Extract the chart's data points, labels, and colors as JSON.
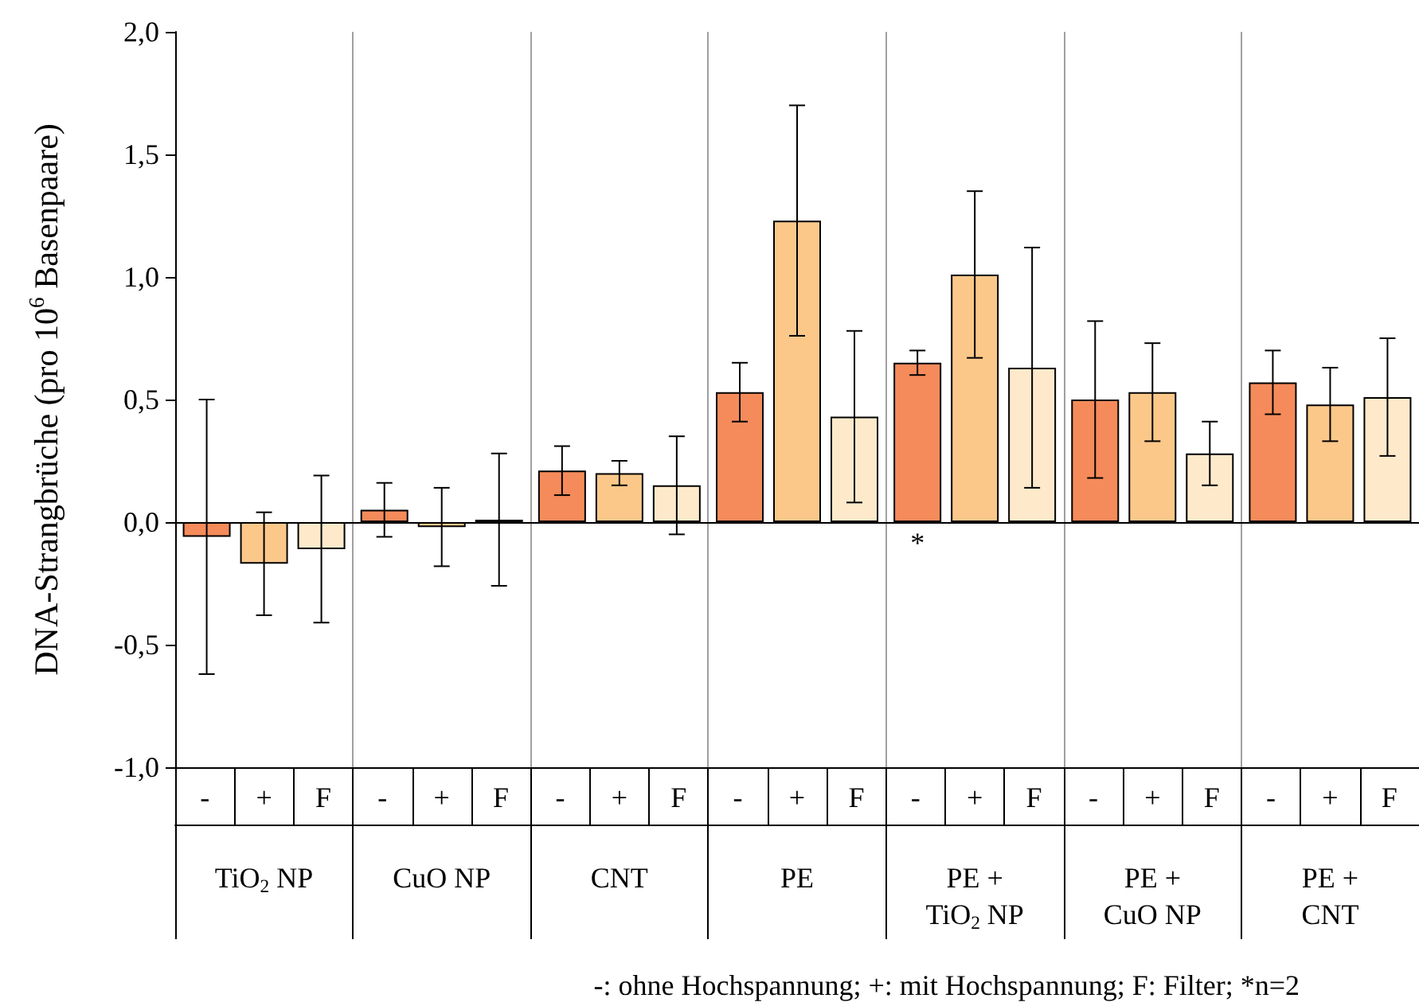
{
  "chart_data": {
    "type": "bar",
    "ylabel": "DNA-Strangbrüche (pro 10$^{6}$ Basenpaare)",
    "categories": [
      "TiO$_{2}$ NP",
      "CuO NP",
      "CNT",
      "PE",
      "PE +\nTiO$_{2}$ NP",
      "PE +\nCuO NP",
      "PE +\nCNT"
    ],
    "series": [
      {
        "name": "-",
        "color": "#f58b5a",
        "values": [
          -0.06,
          0.05,
          0.21,
          0.53,
          0.65,
          0.5,
          0.57
        ],
        "errors": [
          0.56,
          0.11,
          0.1,
          0.12,
          0.05,
          0.32,
          0.13
        ],
        "value_labels": [
          null,
          null,
          null,
          null,
          "*",
          null,
          null
        ]
      },
      {
        "name": "+",
        "color": "#fbc88a",
        "values": [
          -0.17,
          -0.02,
          0.2,
          1.23,
          1.01,
          0.53,
          0.48
        ],
        "errors": [
          0.21,
          0.16,
          0.05,
          0.47,
          0.34,
          0.2,
          0.15
        ]
      },
      {
        "name": "F",
        "color": "#feeacb",
        "values": [
          -0.11,
          0.01,
          0.15,
          0.43,
          0.63,
          0.28,
          0.51
        ],
        "errors": [
          0.3,
          0.27,
          0.2,
          0.35,
          0.49,
          0.13,
          0.24
        ]
      }
    ],
    "ylim": [
      -1,
      2
    ],
    "yticks": [
      {
        "value": -1,
        "label": "-1,0"
      },
      {
        "value": -0.5,
        "label": "-0,5"
      },
      {
        "value": 0,
        "label": "0,0"
      },
      {
        "value": 0.5,
        "label": "0,5"
      },
      {
        "value": 1,
        "label": "1,0"
      },
      {
        "value": 1.5,
        "label": "1,5"
      },
      {
        "value": 2,
        "label": "2,0"
      }
    ],
    "grid": "x",
    "legend": "bottom",
    "annotations": [
      "-: ohne Hochspannung; +: mit Hochspannung; F: Filter; *n=2"
    ]
  }
}
